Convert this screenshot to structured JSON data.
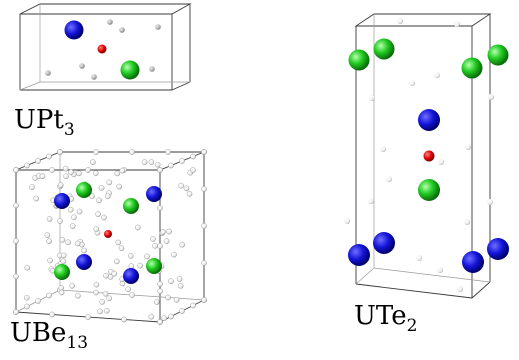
{
  "structures": [
    {
      "id": "upt3",
      "formula": "UPt",
      "subscript": "3"
    },
    {
      "id": "ube13",
      "formula": "UBe",
      "subscript": "13"
    },
    {
      "id": "ute2",
      "formula": "UTe",
      "subscript": "2"
    }
  ],
  "atom_colors": {
    "blue": "#1414d8",
    "green": "#22cc22",
    "red": "#e00000",
    "gray_small": "#bdbdbd",
    "white_small": "#f4f4f4"
  }
}
